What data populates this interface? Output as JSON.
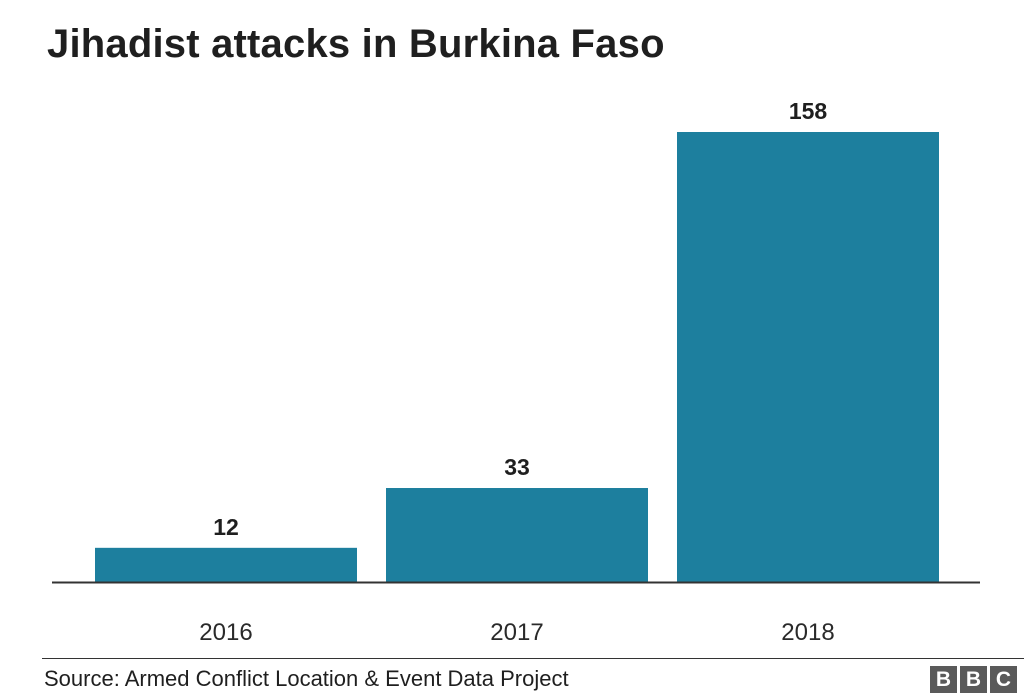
{
  "chart_data": {
    "type": "bar",
    "title": "Jihadist attacks in Burkina Faso",
    "categories": [
      "2016",
      "2017",
      "2018"
    ],
    "values": [
      12,
      33,
      158
    ],
    "value_labels": [
      "12",
      "33",
      "158"
    ],
    "xlabel": "",
    "ylabel": "",
    "ylim": [
      0,
      158
    ],
    "grid": false,
    "bar_color": "#1d7f9e",
    "baseline_color": "#333333"
  },
  "footer": {
    "source": "Source: Armed Conflict Location & Event Data Project",
    "logo_letters": [
      "B",
      "B",
      "C"
    ]
  }
}
